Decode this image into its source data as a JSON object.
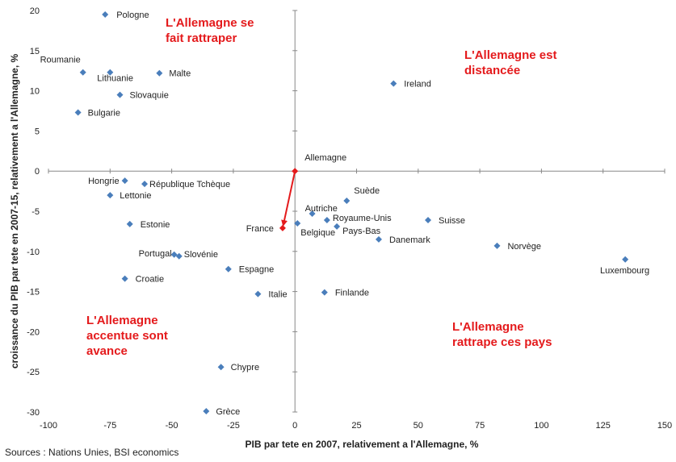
{
  "chart_data": {
    "type": "scatter",
    "xlabel": "PIB par tete en 2007, relativement a l'Allemagne, %",
    "ylabel": "croissance du PIB par tete en 2007-15, relativement a l'Allemagne, %",
    "xlim": [
      -100,
      150
    ],
    "ylim": [
      -30,
      20
    ],
    "xticks": [
      -100,
      -75,
      -50,
      -25,
      0,
      25,
      50,
      75,
      100,
      125,
      150
    ],
    "yticks": [
      -30,
      -25,
      -20,
      -15,
      -10,
      -5,
      0,
      5,
      10,
      15,
      20
    ],
    "grid": false,
    "marker_color": "#4a7ebb",
    "highlight_color": "#e41a1c",
    "points": [
      {
        "label": "Pologne",
        "x": -77,
        "y": 19.5
      },
      {
        "label": "Roumanie",
        "x": -86,
        "y": 12.3
      },
      {
        "label": "Lithuanie",
        "x": -75,
        "y": 12.3
      },
      {
        "label": "Malte",
        "x": -55,
        "y": 12.2
      },
      {
        "label": "Slovaquie",
        "x": -71,
        "y": 9.5
      },
      {
        "label": "Bulgarie",
        "x": -88,
        "y": 7.3
      },
      {
        "label": "Ireland",
        "x": 40,
        "y": 10.9
      },
      {
        "label": "Hongrie",
        "x": -69,
        "y": -1.2
      },
      {
        "label": "République Tchèque",
        "x": -61,
        "y": -1.6
      },
      {
        "label": "Lettonie",
        "x": -75,
        "y": -3
      },
      {
        "label": "Estonie",
        "x": -67,
        "y": -6.6
      },
      {
        "label": "Portugal",
        "x": -49,
        "y": -10.4
      },
      {
        "label": "Slovénie",
        "x": -47,
        "y": -10.6
      },
      {
        "label": "Croatie",
        "x": -69,
        "y": -13.4
      },
      {
        "label": "Espagne",
        "x": -27,
        "y": -12.2
      },
      {
        "label": "Italie",
        "x": -15,
        "y": -15.3
      },
      {
        "label": "Chypre",
        "x": -30,
        "y": -24.4
      },
      {
        "label": "Grèce",
        "x": -36,
        "y": -29.9
      },
      {
        "label": "Allemagne",
        "x": 0,
        "y": 0
      },
      {
        "label": "France",
        "x": -5,
        "y": -7.1
      },
      {
        "label": "Suède",
        "x": 21,
        "y": -3.7
      },
      {
        "label": "Autriche",
        "x": 7,
        "y": -5.3
      },
      {
        "label": "Belgique",
        "x": 1,
        "y": -6.5
      },
      {
        "label": "Royaume-Unis",
        "x": 13,
        "y": -6.1
      },
      {
        "label": "Pays-Bas",
        "x": 17,
        "y": -6.9
      },
      {
        "label": "Suisse",
        "x": 54,
        "y": -6.1
      },
      {
        "label": "Danemark",
        "x": 34,
        "y": -8.5
      },
      {
        "label": "Norvège",
        "x": 82,
        "y": -9.3
      },
      {
        "label": "Luxembourg",
        "x": 134,
        "y": -11
      },
      {
        "label": "Finlande",
        "x": 12,
        "y": -15.1
      }
    ],
    "arrow": {
      "from": "Allemagne",
      "to": "France"
    },
    "annotations": [
      {
        "text": [
          "L'Allemagne se",
          "fait rattraper"
        ],
        "quadrant": "top-left"
      },
      {
        "text": [
          "L'Allemagne est",
          "distancée"
        ],
        "quadrant": "top-right"
      },
      {
        "text": [
          "L'Allemagne",
          "accentue sont",
          "avance"
        ],
        "quadrant": "bottom-left"
      },
      {
        "text": [
          "L'Allemagne",
          "rattrape ces pays"
        ],
        "quadrant": "bottom-right"
      }
    ],
    "source": "Sources : Nations Unies, BSI economics"
  }
}
